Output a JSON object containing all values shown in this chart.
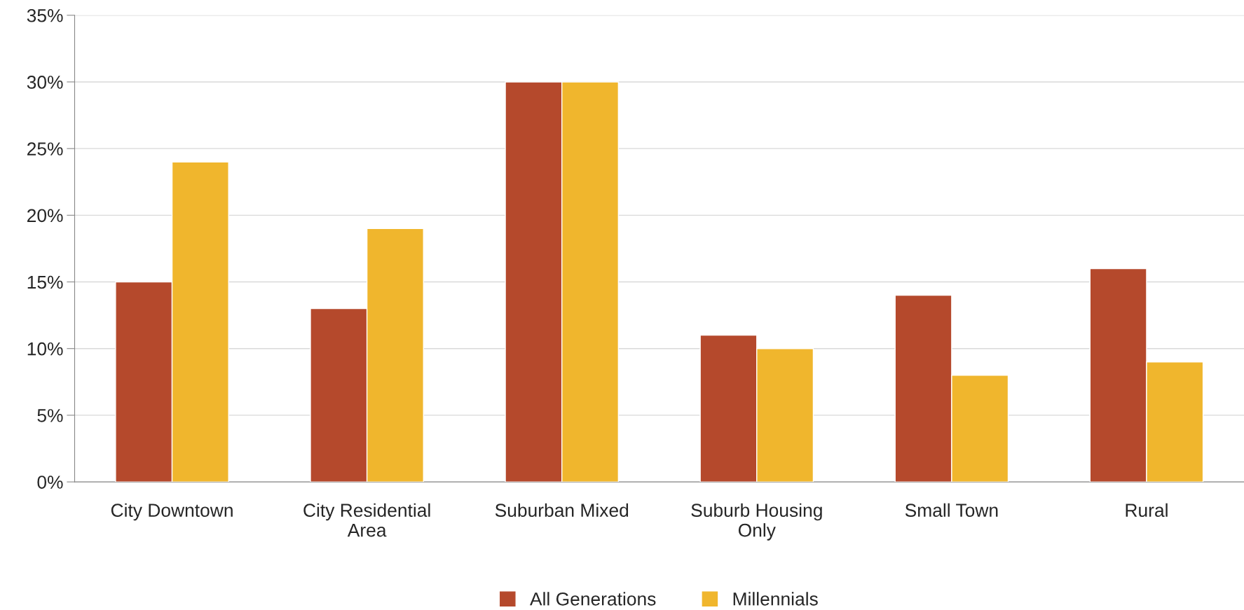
{
  "chart_data": {
    "type": "bar",
    "categories": [
      "City Downtown",
      "City Residential\nArea",
      "Suburban Mixed",
      "Suburb Housing\nOnly",
      "Small Town",
      "Rural"
    ],
    "series": [
      {
        "name": "All Generations",
        "color": "#b5492c",
        "values": [
          15,
          13,
          30,
          11,
          14,
          16
        ]
      },
      {
        "name": "Millennials",
        "color": "#f0b62d",
        "values": [
          24,
          19,
          30,
          10,
          8,
          9
        ]
      }
    ],
    "ylim": [
      0,
      35
    ],
    "yticks": [
      {
        "value": 0,
        "label": "0%"
      },
      {
        "value": 5,
        "label": "5%"
      },
      {
        "value": 10,
        "label": "10%"
      },
      {
        "value": 15,
        "label": "15%"
      },
      {
        "value": 20,
        "label": "20%"
      },
      {
        "value": 25,
        "label": "25%"
      },
      {
        "value": 30,
        "label": "30%"
      },
      {
        "value": 35,
        "label": "35%"
      }
    ],
    "grid": "y",
    "legend": "bottom"
  }
}
